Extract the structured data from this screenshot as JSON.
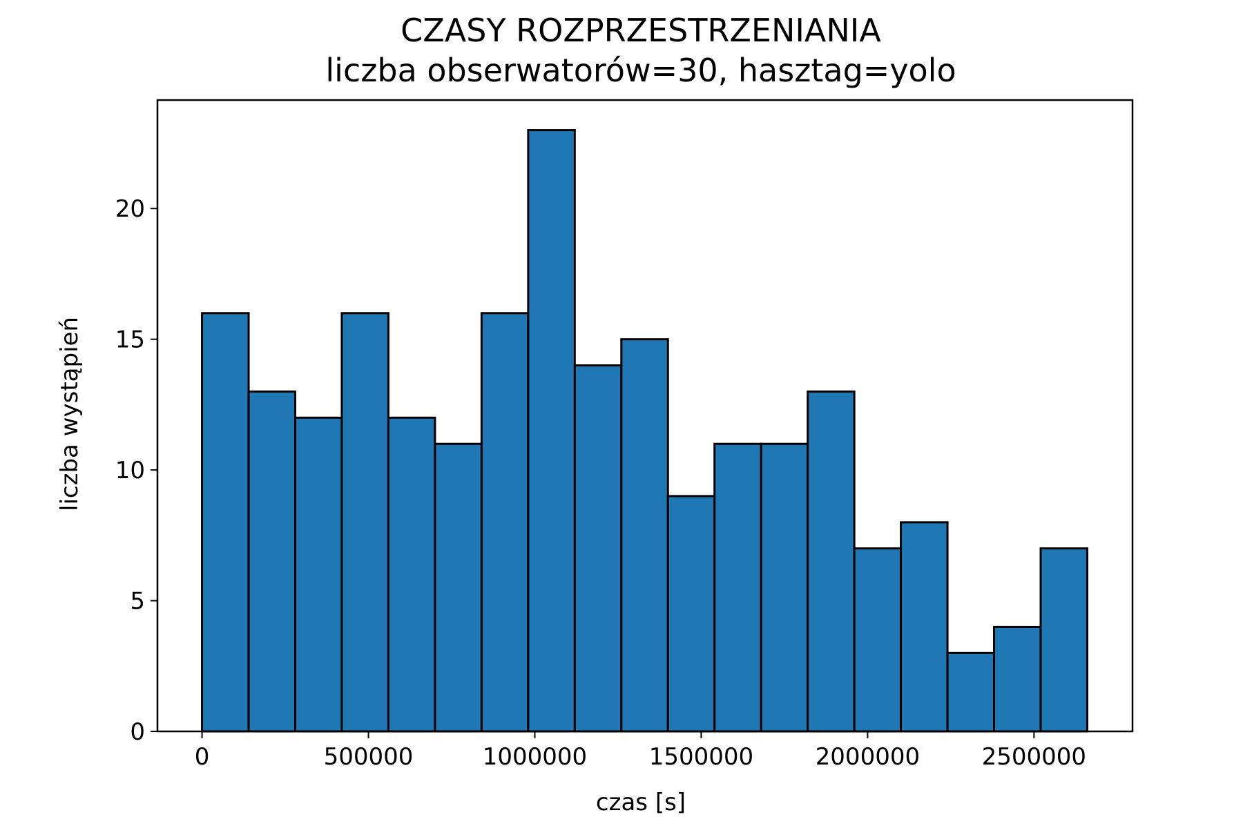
{
  "chart_data": {
    "type": "bar",
    "title": "CZASY ROZPRZESTRZENIANIA",
    "subtitle": "liczba obserwatorów=30, hasztag=yolo",
    "xlabel": "czas [s]",
    "ylabel": "liczba wystąpień",
    "bin_edges": [
      0,
      140000,
      280000,
      420000,
      560000,
      700000,
      840000,
      980000,
      1120000,
      1260000,
      1400000,
      1540000,
      1680000,
      1820000,
      1960000,
      2100000,
      2240000,
      2380000,
      2520000,
      2660000
    ],
    "values": [
      16,
      13,
      12,
      16,
      12,
      11,
      16,
      23,
      14,
      15,
      9,
      11,
      11,
      13,
      7,
      8,
      3,
      4,
      7
    ],
    "xlim": [
      -134000,
      2796000
    ],
    "ylim": [
      0,
      24.15
    ],
    "xticks": [
      0,
      500000,
      1000000,
      1500000,
      2000000,
      2500000
    ],
    "xtick_labels": [
      "0",
      "500000",
      "1000000",
      "1500000",
      "2000000",
      "2500000"
    ],
    "yticks": [
      0,
      5,
      10,
      15,
      20
    ],
    "ytick_labels": [
      "0",
      "5",
      "10",
      "15",
      "20"
    ],
    "bar_color": "#1f77b4",
    "edge_color": "#000000",
    "grid": false,
    "legend": "none"
  }
}
